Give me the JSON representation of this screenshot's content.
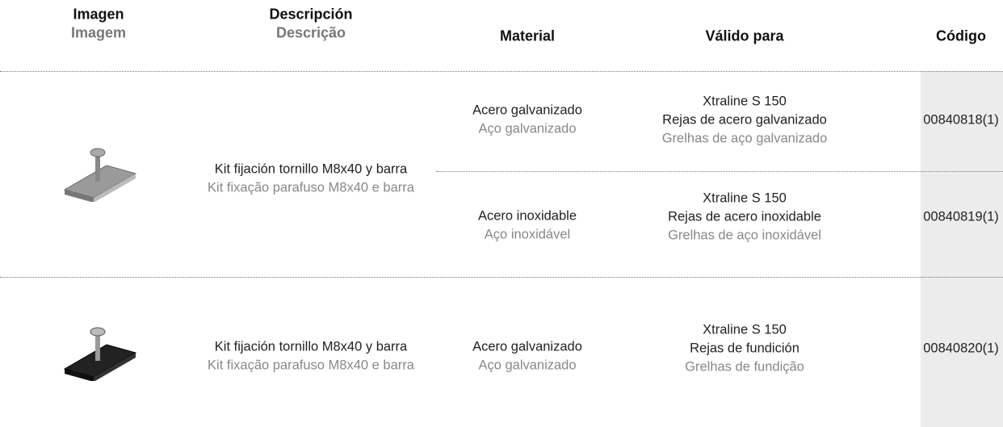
{
  "header": {
    "imagen": {
      "es": "Imagen",
      "pt": "Imagem"
    },
    "descripcion": {
      "es": "Descripción",
      "pt": "Descrição"
    },
    "material": "Material",
    "valido": "Válido para",
    "codigo": "Código"
  },
  "rows": [
    {
      "description": {
        "es": "Kit fijación tornillo M8x40 y barra",
        "pt": "Kit fixação parafuso M8x40 e barra"
      },
      "variants": [
        {
          "material": {
            "es": "Acero galvanizado",
            "pt": "Aço galvanizado"
          },
          "valid": {
            "line": "Xtraline S 150",
            "es": "Rejas de acero galvanizado",
            "pt": "Grelhas de aço galvanizado"
          },
          "code": "00840818(1)"
        },
        {
          "material": {
            "es": "Acero inoxidable",
            "pt": "Aço inoxidável"
          },
          "valid": {
            "line": "Xtraline S 150",
            "es": "Rejas de acero inoxidable",
            "pt": "Grelhas de aço inoxidável"
          },
          "code": "00840819(1)"
        }
      ]
    },
    {
      "description": {
        "es": "Kit fijación tornillo M8x40 y barra",
        "pt": "Kit fixação parafuso M8x40 e barra"
      },
      "variants": [
        {
          "material": {
            "es": "Acero galvanizado",
            "pt": "Aço galvanizado"
          },
          "valid": {
            "line": "Xtraline S 150",
            "es": "Rejas de fundición",
            "pt": "Grelhas de fundição"
          },
          "code": "00840820(1)"
        }
      ]
    }
  ]
}
